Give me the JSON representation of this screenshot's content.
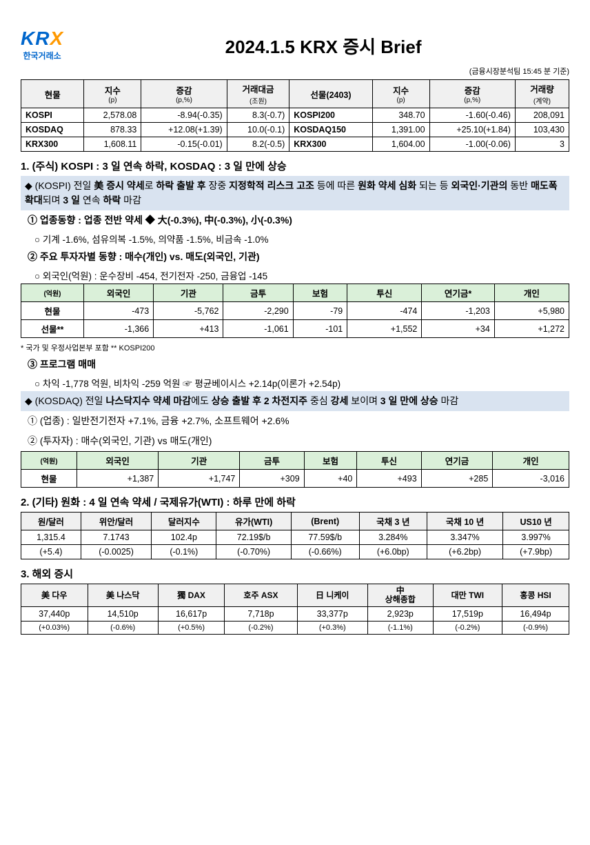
{
  "header": {
    "logo_top": "KR",
    "logo_x": "X",
    "logo_bottom": "한국거래소",
    "title": "2024.1.5  KRX 증시 Brief",
    "timestamp": "(금융시장분석팀 15:45 분 기준)"
  },
  "main_table": {
    "headers": {
      "spot": "현물",
      "index": "지수",
      "index_unit": "(p)",
      "change": "증감",
      "change_unit": "(p,%)",
      "value": "거래대금",
      "value_unit": "(조원)",
      "futures": "선물(2403)",
      "volume": "거래량",
      "volume_unit": "(계약)"
    },
    "rows": [
      {
        "spot_name": "KOSPI",
        "spot_idx": "2,578.08",
        "spot_chg": "-8.94(-0.35)",
        "spot_val": "8.3(-0.7)",
        "fut_name": "KOSPI200",
        "fut_idx": "348.70",
        "fut_chg": "-1.60(-0.46)",
        "fut_vol": "208,091"
      },
      {
        "spot_name": "KOSDAQ",
        "spot_idx": "878.33",
        "spot_chg": "+12.08(+1.39)",
        "spot_val": "10.0(-0.1)",
        "fut_name": "KOSDAQ150",
        "fut_idx": "1,391.00",
        "fut_chg": "+25.10(+1.84)",
        "fut_vol": "103,430"
      },
      {
        "spot_name": "KRX300",
        "spot_idx": "1,608.11",
        "spot_chg": "-0.15(-0.01)",
        "spot_val": "8.2(-0.5)",
        "fut_name": "KRX300",
        "fut_idx": "1,604.00",
        "fut_chg": "-1.00(-0.06)",
        "fut_vol": "3"
      }
    ]
  },
  "section1": {
    "heading": "1. (주식) KOSPI : 3 일 연속 하락, KOSDAQ : 3 일 만에 상승",
    "kospi_summary_html": "◆ (KOSPI) 전일 <b>美 증시 약세</b>로 <b>하락 출발 후</b> 장중 <b>지정학적 리스크 고조</b> 등에 따른 <b>원화 약세 심화</b> 되는 등 <b>외국인·기관의</b> 동반 <b>매도폭 확대</b>되며 <b>3 일</b> 연속 <b>하락</b> 마감",
    "item1": "① 업종동향 : 업종 전반 약세   ◆ 大(-0.3%), 中(-0.3%), 小(-0.3%)",
    "item1_sub": "○ 기계 -1.6%, 섬유의복 -1.5%, 의약품 -1.5%, 비금속 -1.0%",
    "item2": "② 주요 투자자별 동향 : 매수(개인) vs. 매도(외국인, 기관)",
    "item2_sub": "○ 외국인(억원) : 운수장비 -454, 전기전자 -250, 금융업 -145"
  },
  "investor_table": {
    "unit": "(억원)",
    "headers": [
      "외국인",
      "기관",
      "금투",
      "보험",
      "투신",
      "연기금*",
      "개인"
    ],
    "rows": [
      {
        "label": "현물",
        "cells": [
          "-473",
          "-5,762",
          "-2,290",
          "-79",
          "-474",
          "-1,203",
          "+5,980"
        ]
      },
      {
        "label": "선물**",
        "cells": [
          "-1,366",
          "+413",
          "-1,061",
          "-101",
          "+1,552",
          "+34",
          "+1,272"
        ]
      }
    ],
    "footnote": "* 국가 및 우정사업본부 포함   ** KOSPI200"
  },
  "section1b": {
    "item3": "③ 프로그램 매매",
    "item3_sub": "○ 차익 -1,778 억원, 비차익 -259 억원 ☞ 평균베이시스 +2.14p(이론가 +2.54p)",
    "kosdaq_summary_html": "◆ (KOSDAQ) 전일 <b>나스닥지수 약세 마감</b>에도 <b>상승 출발 후  2 차전지주</b> 중심 <b>강세</b> 보이며 <b>3 일 만에 상승</b> 마감",
    "kosdaq_item1": "① (업종) : 일반전기전자 +7.1%, 금융 +2.7%, 소프트웨어 +2.6%",
    "kosdaq_item2": "② (투자자) : 매수(외국인, 기관) vs 매도(개인)"
  },
  "kosdaq_investor_table": {
    "unit": "(억원)",
    "headers": [
      "외국인",
      "기관",
      "금투",
      "보험",
      "투신",
      "연기금",
      "개인"
    ],
    "row": {
      "label": "현물",
      "cells": [
        "+1,387",
        "+1,747",
        "+309",
        "+40",
        "+493",
        "+285",
        "-3,016"
      ]
    }
  },
  "section2": {
    "heading": "2. (기타) 원화 : 4 일 연속 약세 / 국제유가(WTI) : 하루 만에 하락",
    "headers": [
      "원/달러",
      "위안/달러",
      "달러지수",
      "유가(WTI)",
      "(Brent)",
      "국채 3 년",
      "국채 10 년",
      "US10 년"
    ],
    "row1": [
      "1,315.4",
      "7.1743",
      "102.4p",
      "72.19$/b",
      "77.59$/b",
      "3.284%",
      "3.347%",
      "3.997%"
    ],
    "row2": [
      "(+5.4)",
      "(-0.0025)",
      "(-0.1%)",
      "(-0.70%)",
      "(-0.66%)",
      "(+6.0bp)",
      "(+6.2bp)",
      "(+7.9bp)"
    ]
  },
  "section3": {
    "heading": "3. 해외 증시",
    "headers": [
      "美 다우",
      "美 나스닥",
      "獨 DAX",
      "호주 ASX",
      "日 니케이",
      "中\n상해종합",
      "대만 TWI",
      "홍콩 HSI"
    ],
    "row1": [
      "37,440p",
      "14,510p",
      "16,617p",
      "7,718p",
      "33,377p",
      "2,923p",
      "17,519p",
      "16,494p"
    ],
    "row2": [
      "(+0.03%)",
      "(-0.6%)",
      "(+0.5%)",
      "(-0.2%)",
      "(+0.3%)",
      "(-1.1%)",
      "(-0.2%)",
      "(-0.9%)"
    ]
  }
}
